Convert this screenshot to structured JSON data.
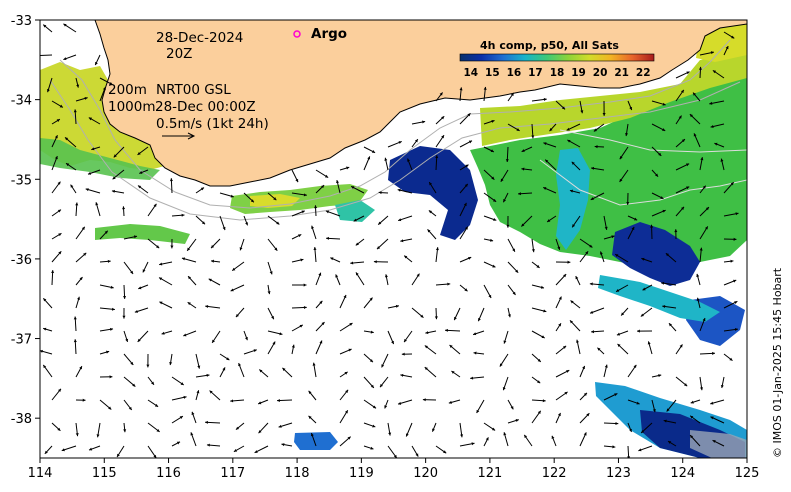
{
  "map": {
    "lon_ticks": [
      "114",
      "115",
      "116",
      "117",
      "118",
      "119",
      "120",
      "121",
      "122",
      "123",
      "124",
      "125"
    ],
    "lat_ticks": [
      "-33",
      "-34",
      "-35",
      "-36",
      "-37",
      "-38"
    ],
    "lon_range": [
      114,
      125
    ],
    "lat_range": [
      -38.5,
      -33
    ],
    "annotations": {
      "date": "28-Dec-2024",
      "time": "20Z",
      "depth_200": "200m",
      "depth_1000": "1000m",
      "nrt": "NRT00 GSL",
      "nrt_time": "28-Dec 00:00Z",
      "scale": "0.5m/s (1kt 24h)",
      "argo": "Argo"
    },
    "colorbar": {
      "title": "4h comp, p50, All Sats",
      "labels": [
        "14",
        "15",
        "16",
        "17",
        "18",
        "19",
        "20",
        "21",
        "22"
      ],
      "min": 13.5,
      "max": 22.5,
      "colors": [
        "#08306b",
        "#0b2fa8",
        "#1f6fd1",
        "#19b3c9",
        "#3cc879",
        "#8bd33a",
        "#d2dc2a",
        "#f2b424",
        "#e8642a",
        "#a81c1c"
      ]
    },
    "credit": "© IMOS 01-Jan-2025 15:45 Hobart",
    "colors": {
      "land": "#fbcf9c",
      "coast": "#000000",
      "ocean": "#ffffff"
    }
  }
}
